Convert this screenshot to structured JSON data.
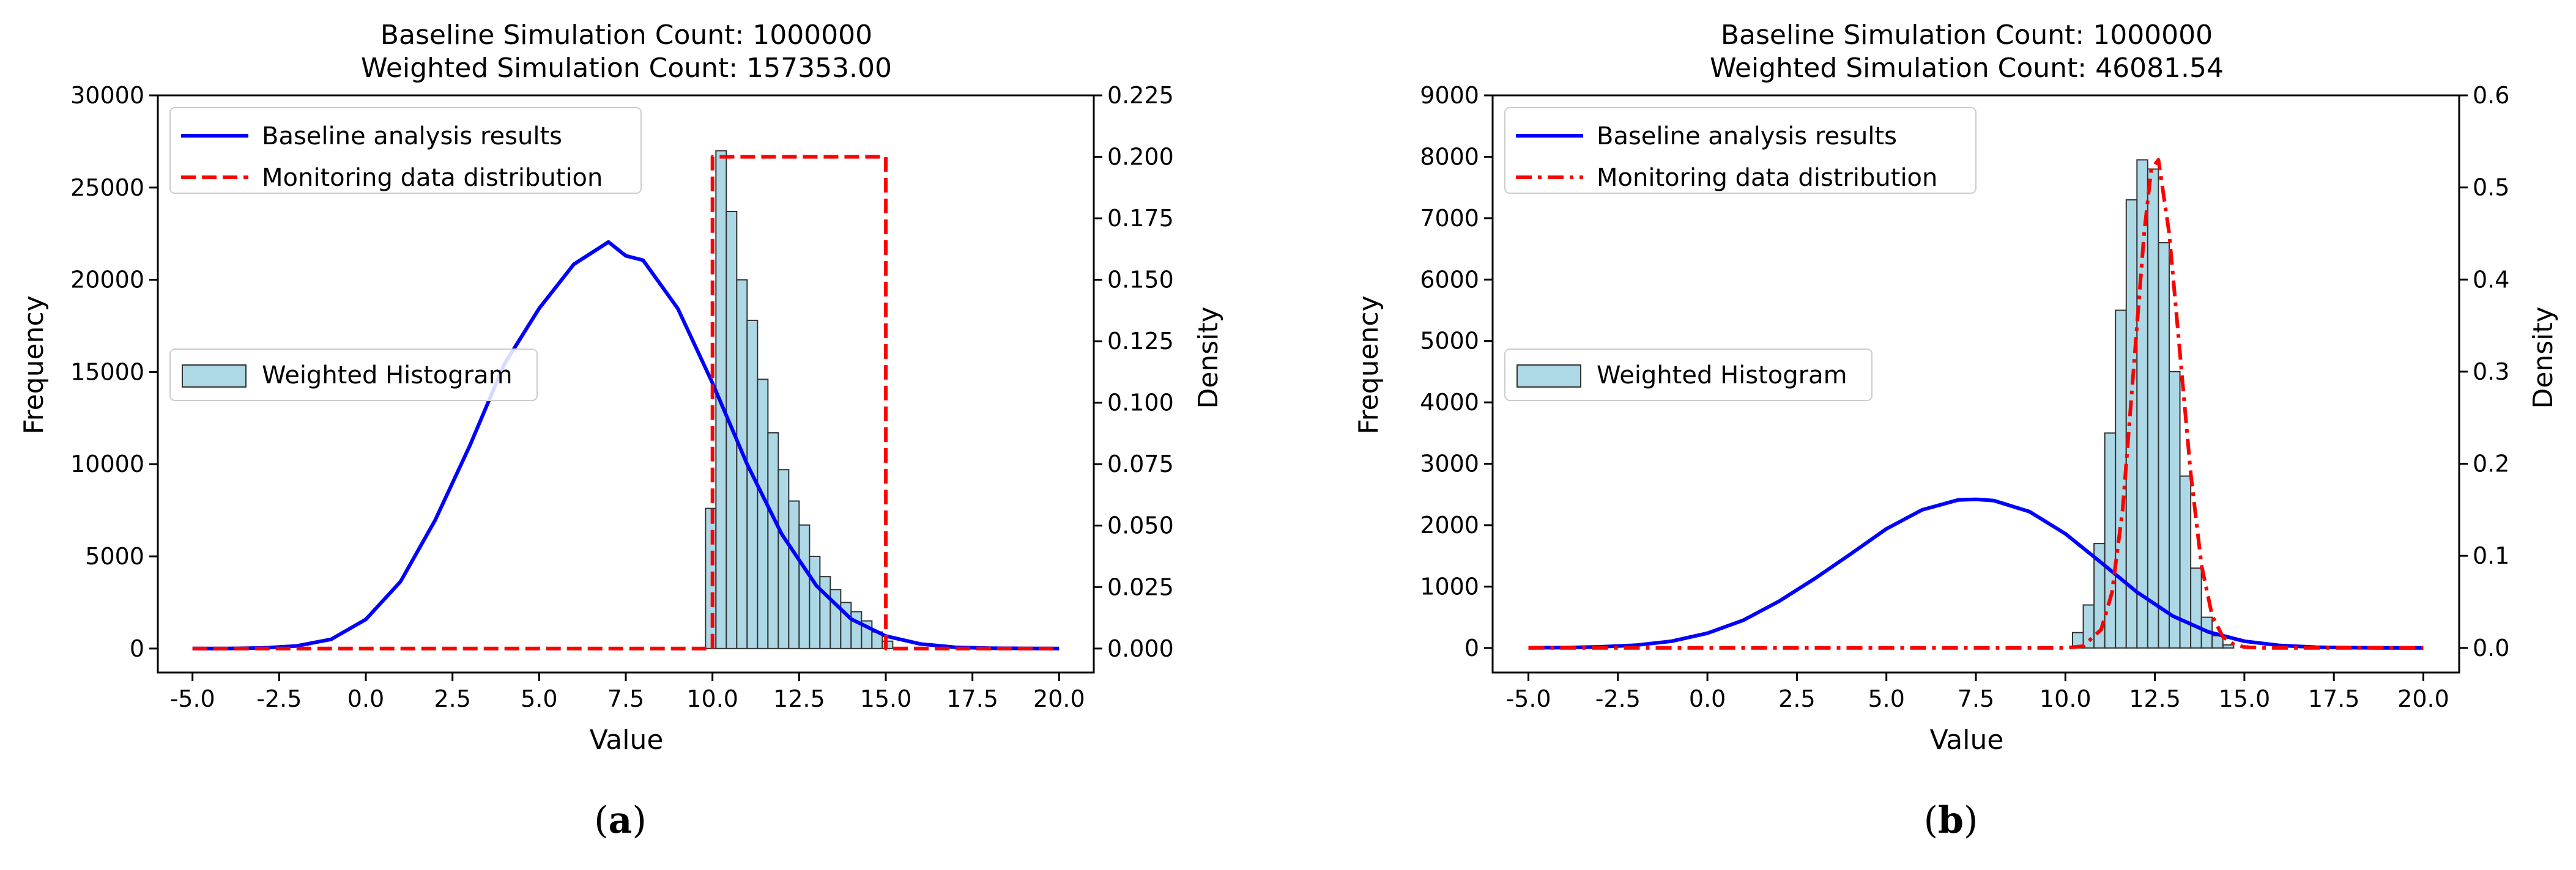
{
  "chart_data": [
    {
      "type": "histogram",
      "caption": "(a)",
      "title_lines": [
        "Baseline Simulation Count: 1000000",
        "Weighted Simulation Count: 157353.00"
      ],
      "xlabel": "Value",
      "ylabel": "Frequency",
      "y2label": "Density",
      "xlim": [
        -6.0,
        21.0
      ],
      "ylim": [
        -1300,
        30000
      ],
      "y2lim": [
        -0.00975,
        0.225
      ],
      "xticks": [
        "-5.0",
        "-2.5",
        "0.0",
        "2.5",
        "5.0",
        "7.5",
        "10.0",
        "12.5",
        "15.0",
        "17.5",
        "20.0"
      ],
      "yticks": [
        "0",
        "5000",
        "10000",
        "15000",
        "20000",
        "25000",
        "30000"
      ],
      "y2ticks": [
        "0.000",
        "0.025",
        "0.050",
        "0.075",
        "0.100",
        "0.125",
        "0.150",
        "0.175",
        "0.200",
        "0.225"
      ],
      "grid": false,
      "legend_top": {
        "position": "upper-left",
        "entries": [
          {
            "label": "Baseline analysis results",
            "color": "#0000ff",
            "style": "solid"
          },
          {
            "label": "Monitoring data distribution",
            "color": "#ff0000",
            "style": "dashed"
          }
        ]
      },
      "legend_mid": {
        "position": "center-left",
        "entries": [
          {
            "label": "Weighted Histogram",
            "color": "#add8e6",
            "style": "bar"
          }
        ]
      },
      "histogram": {
        "color": "#add8e6",
        "bin_edges": [
          9.8,
          10.1,
          10.4,
          10.7,
          11.0,
          11.3,
          11.6,
          11.9,
          12.2,
          12.5,
          12.8,
          13.1,
          13.4,
          13.7,
          14.0,
          14.3,
          14.6,
          14.9,
          15.2
        ],
        "values": [
          7600,
          27000,
          23700,
          20000,
          17800,
          14600,
          11700,
          9700,
          8000,
          6700,
          5000,
          3900,
          3200,
          2500,
          2000,
          1500,
          900,
          400
        ]
      },
      "series": [
        {
          "name": "Baseline analysis results",
          "axis": "left",
          "color": "#0000ff",
          "x": [
            -5,
            -4,
            -3,
            -2,
            -1,
            0,
            1,
            2,
            3,
            4,
            5,
            6,
            7,
            7.5,
            8,
            9,
            10,
            11,
            12,
            13,
            14,
            15,
            16,
            17,
            18,
            19,
            20
          ],
          "y": [
            0,
            4,
            30,
            140,
            500,
            1580,
            3630,
            6960,
            11000,
            15440,
            18440,
            20840,
            22050,
            21300,
            21060,
            18440,
            14400,
            10000,
            6200,
            3400,
            1600,
            680,
            250,
            70,
            20,
            5,
            0
          ]
        },
        {
          "name": "Monitoring data distribution",
          "axis": "right",
          "color": "#ff0000",
          "x": [
            -5,
            9.95,
            10.0,
            10.0,
            15.0,
            15.0,
            15.05,
            20
          ],
          "y": [
            0,
            0,
            0,
            0.2,
            0.2,
            0,
            0,
            0
          ]
        }
      ]
    },
    {
      "type": "histogram",
      "caption": "(b)",
      "title_lines": [
        "Baseline Simulation Count: 1000000",
        "Weighted Simulation Count: 46081.54"
      ],
      "xlabel": "Value",
      "ylabel": "Frequency",
      "y2label": "Density",
      "xlim": [
        -6.0,
        21.0
      ],
      "ylim": [
        -400,
        9000
      ],
      "y2lim": [
        -0.0267,
        0.6
      ],
      "xticks": [
        "-5.0",
        "-2.5",
        "0.0",
        "2.5",
        "5.0",
        "7.5",
        "10.0",
        "12.5",
        "15.0",
        "17.5",
        "20.0"
      ],
      "yticks": [
        "0",
        "1000",
        "2000",
        "3000",
        "4000",
        "5000",
        "6000",
        "7000",
        "8000",
        "9000"
      ],
      "y2ticks": [
        "0.0",
        "0.1",
        "0.2",
        "0.3",
        "0.4",
        "0.5",
        "0.6"
      ],
      "grid": false,
      "legend_top": {
        "position": "upper-left",
        "entries": [
          {
            "label": "Baseline analysis results",
            "color": "#0000ff",
            "style": "solid"
          },
          {
            "label": "Monitoring data distribution",
            "color": "#ff0000",
            "style": "dashdot"
          }
        ]
      },
      "legend_mid": {
        "position": "center-left",
        "entries": [
          {
            "label": "Weighted Histogram",
            "color": "#add8e6",
            "style": "bar"
          }
        ]
      },
      "histogram": {
        "color": "#add8e6",
        "bin_edges": [
          10.2,
          10.5,
          10.8,
          11.1,
          11.4,
          11.7,
          12.0,
          12.3,
          12.6,
          12.9,
          13.2,
          13.5,
          13.8,
          14.1,
          14.4,
          14.7
        ],
        "values": [
          250,
          700,
          1700,
          3500,
          5500,
          7300,
          7950,
          7800,
          6600,
          4500,
          2800,
          1300,
          500,
          200,
          50
        ]
      },
      "series": [
        {
          "name": "Baseline analysis results",
          "axis": "left",
          "color": "#0000ff",
          "x": [
            -5,
            -4,
            -3,
            -2,
            -1,
            0,
            1,
            2,
            3,
            4,
            5,
            6,
            7,
            7.5,
            8,
            9,
            10,
            11,
            12,
            13,
            14,
            15,
            16,
            17,
            18,
            19,
            20
          ],
          "y": [
            2,
            6,
            18,
            45,
            110,
            240,
            450,
            760,
            1130,
            1530,
            1940,
            2250,
            2410,
            2420,
            2400,
            2220,
            1860,
            1390,
            910,
            520,
            260,
            110,
            40,
            12,
            4,
            1,
            0
          ]
        },
        {
          "name": "Monitoring data distribution",
          "axis": "right",
          "color": "#ff0000",
          "x": [
            -5,
            10,
            10.5,
            11.0,
            11.3,
            11.6,
            11.9,
            12.2,
            12.4,
            12.6,
            12.9,
            13.2,
            13.5,
            13.8,
            14.1,
            14.4,
            14.7,
            15.0,
            15.5,
            20
          ],
          "y": [
            0,
            0,
            0.002,
            0.02,
            0.06,
            0.15,
            0.3,
            0.45,
            0.52,
            0.53,
            0.45,
            0.32,
            0.19,
            0.09,
            0.035,
            0.012,
            0.004,
            0.001,
            0,
            0
          ]
        }
      ]
    }
  ]
}
